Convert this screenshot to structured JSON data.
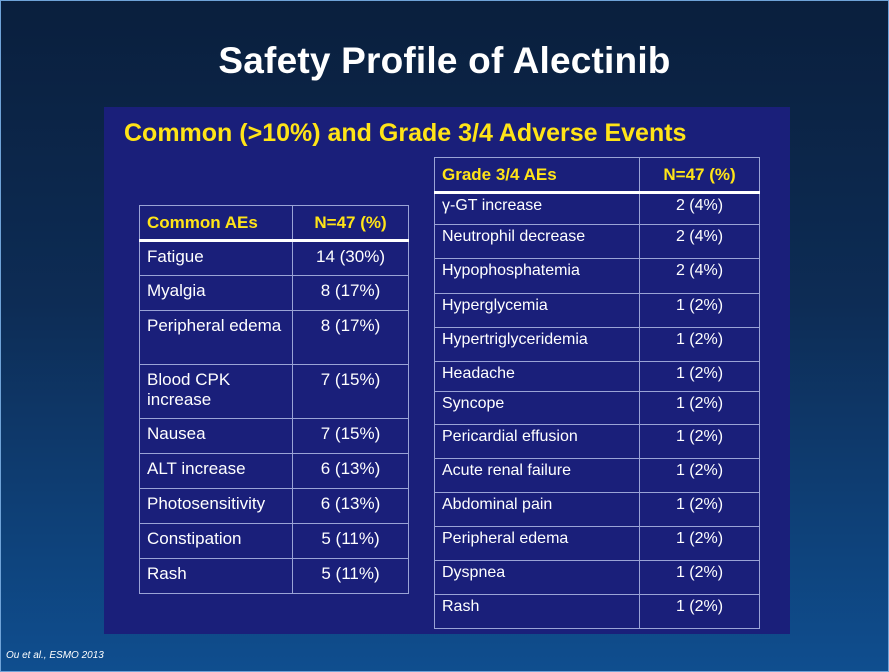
{
  "title": "Safety Profile of Alectinib",
  "panel_heading": "Common (>10%) and Grade 3/4 Adverse Events",
  "common_table": {
    "headers": [
      "Common AEs",
      "N=47 (%)"
    ],
    "rows": [
      [
        "Fatigue",
        "14 (30%)"
      ],
      [
        "Myalgia",
        "8 (17%)"
      ],
      [
        "Peripheral edema",
        "8 (17%)"
      ],
      [
        "Blood CPK increase",
        "7 (15%)"
      ],
      [
        "Nausea",
        "7 (15%)"
      ],
      [
        "ALT increase",
        "6 (13%)"
      ],
      [
        "Photosensitivity",
        "6 (13%)"
      ],
      [
        "Constipation",
        "5 (11%)"
      ],
      [
        "Rash",
        "5 (11%)"
      ]
    ]
  },
  "grade_table": {
    "headers": [
      "Grade 3/4 AEs",
      "N=47 (%)"
    ],
    "rows": [
      [
        "γ-GT increase",
        "2 (4%)"
      ],
      [
        "Neutrophil decrease",
        "2 (4%)"
      ],
      [
        "Hypophosphatemia",
        "2 (4%)"
      ],
      [
        "Hyperglycemia",
        "1 (2%)"
      ],
      [
        "Hypertriglyceridemia",
        "1 (2%)"
      ],
      [
        "Headache",
        "1 (2%)"
      ],
      [
        "Syncope",
        "1 (2%)"
      ],
      [
        "Pericardial effusion",
        "1 (2%)"
      ],
      [
        "Acute renal failure",
        "1 (2%)"
      ],
      [
        "Abdominal pain",
        "1 (2%)"
      ],
      [
        "Peripheral edema",
        "1 (2%)"
      ],
      [
        "Dyspnea",
        "1 (2%)"
      ],
      [
        "Rash",
        "1 (2%)"
      ]
    ]
  },
  "footnote": "Ou et al., ESMO 2013"
}
